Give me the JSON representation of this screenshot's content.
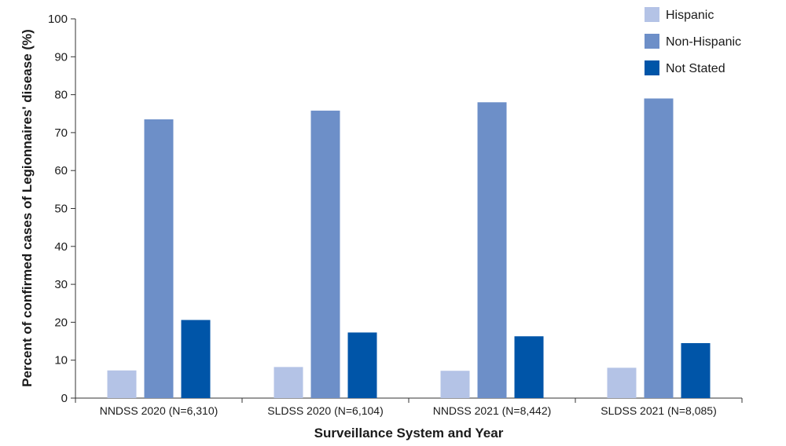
{
  "chart_data": {
    "type": "bar",
    "categories": [
      "NNDSS 2020 (N=6,310)",
      "SLDSS 2020 (N=6,104)",
      "NNDSS 2021 (N=8,442)",
      "SLDSS 2021 (N=8,085)"
    ],
    "series": [
      {
        "name": "Hispanic",
        "color": "#b4c3e6",
        "values": [
          7.3,
          8.2,
          7.2,
          8.0
        ]
      },
      {
        "name": "Non-Hispanic",
        "color": "#6d8fc8",
        "values": [
          73.5,
          75.8,
          78.0,
          79.0
        ]
      },
      {
        "name": "Not Stated",
        "color": "#0055a8",
        "values": [
          20.6,
          17.3,
          16.3,
          14.5
        ]
      }
    ],
    "xlabel": "Surveillance System and Year",
    "ylabel": "Percent of confirmed cases of Legionnaires' disease (%)",
    "ylim": [
      0,
      100
    ],
    "yticks": [
      0,
      10,
      20,
      30,
      40,
      50,
      60,
      70,
      80,
      90,
      100
    ],
    "grid": false,
    "legend_position": "top-right"
  }
}
